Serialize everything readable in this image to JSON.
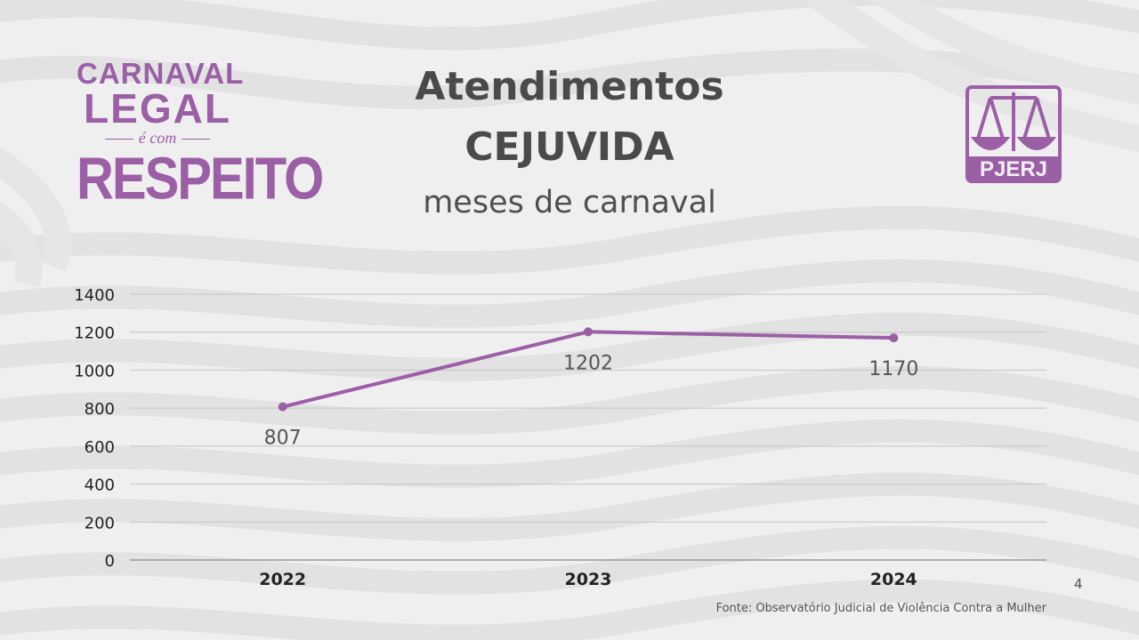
{
  "header": {
    "title_line1": "Atendimentos",
    "title_line2": "CEJUVIDA",
    "subtitle": "meses de carnaval"
  },
  "logo_left": {
    "line1": "CARNAVAL",
    "line2": "LEGAL",
    "line3": "é com",
    "line4": "RESPEITO",
    "color": "#9b5fa6"
  },
  "logo_right": {
    "text": "PJERJ",
    "icon": "scales-of-justice-icon",
    "color": "#9b5fa6"
  },
  "chart_data": {
    "type": "line",
    "categories": [
      "2022",
      "2023",
      "2024"
    ],
    "series": [
      {
        "values": [
          807,
          1202,
          1170
        ],
        "color": "#9b5fa6"
      }
    ],
    "data_labels": [
      "807",
      "1202",
      "1170"
    ],
    "yticks": [
      0,
      200,
      400,
      600,
      800,
      1000,
      1200,
      1400
    ],
    "ylim": [
      0,
      1400
    ],
    "grid": true,
    "xlabel": "",
    "ylabel": ""
  },
  "footer": {
    "page_number": "4",
    "source": "Fonte: Observatório Judicial de Violência Contra a Mulher"
  }
}
